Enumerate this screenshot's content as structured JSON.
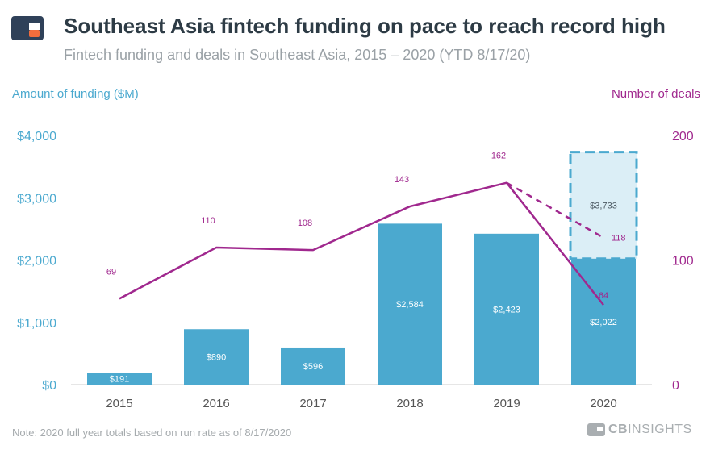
{
  "header": {
    "title": "Southeast Asia fintech funding on pace to reach record high",
    "subtitle": "Fintech funding and deals in Southeast Asia, 2015 – 2020 (YTD 8/17/20)"
  },
  "footer": {
    "note": "Note: 2020 full year totals based on run rate as of 8/17/2020",
    "brand_bold": "CB",
    "brand_rest": "INSIGHTS"
  },
  "colors": {
    "bar": "#4ba9cf",
    "projected_bar_fill": "#dbeef6",
    "line": "#a0288e",
    "left_axis": "#4ba9cf",
    "right_axis": "#a0288e",
    "axis_text": "#555555",
    "bar_label": "#ffffff",
    "projected_label": "#4d5a63",
    "logo_blue": "#2f4159",
    "logo_orange": "#f26d3d"
  },
  "chart_data": {
    "type": "bar",
    "categories": [
      "2015",
      "2016",
      "2017",
      "2018",
      "2019",
      "2020"
    ],
    "left_axis": {
      "label": "Amount of funding ($M)",
      "ylim": [
        0,
        4000
      ],
      "ticks": [
        "$0",
        "$1,000",
        "$2,000",
        "$3,000",
        "$4,000"
      ],
      "tick_values": [
        0,
        1000,
        2000,
        3000,
        4000
      ]
    },
    "right_axis": {
      "label": "Number of deals",
      "ylim": [
        0,
        200
      ],
      "ticks": [
        "0",
        "100",
        "200"
      ],
      "tick_values": [
        0,
        100,
        200
      ]
    },
    "series": [
      {
        "name": "Amount of funding ($M)",
        "kind": "bar",
        "axis": "left",
        "values": [
          191,
          890,
          596,
          2584,
          2423,
          2022
        ],
        "labels": [
          "$191",
          "$890",
          "$596",
          "$2,584",
          "$2,423",
          "$2,022"
        ]
      },
      {
        "name": "Number of deals",
        "kind": "line",
        "axis": "right",
        "values": [
          69,
          110,
          108,
          143,
          162,
          64
        ],
        "labels": [
          "69",
          "110",
          "108",
          "143",
          "162",
          "64"
        ]
      }
    ],
    "projection": {
      "category": "2020",
      "funding_value": 3733,
      "funding_label": "$3,733",
      "deals_value": 118,
      "deals_label": "118",
      "style": "dashed"
    },
    "grid": false,
    "legend": "none"
  }
}
